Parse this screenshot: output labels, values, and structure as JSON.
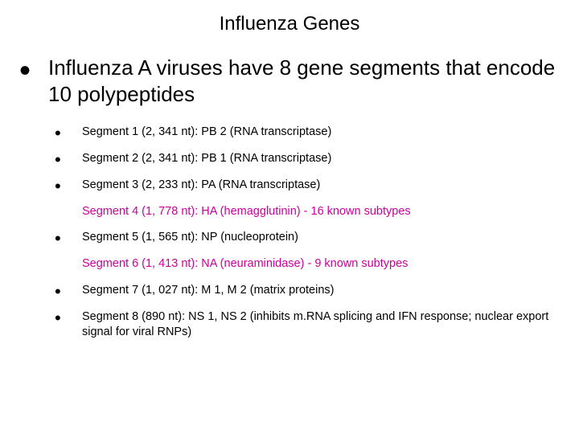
{
  "title": "Influenza Genes",
  "main": {
    "text": "Influenza A viruses have 8 gene segments that encode 10 polypeptides"
  },
  "subs": [
    {
      "bullet": true,
      "color": "#000000",
      "text": "Segment 1 (2, 341 nt): PB 2 (RNA transcriptase)"
    },
    {
      "bullet": true,
      "color": "#000000",
      "text": "Segment 2 (2, 341 nt): PB 1 (RNA transcriptase)"
    },
    {
      "bullet": true,
      "color": "#000000",
      "text": "Segment 3 (2, 233 nt): PA (RNA transcriptase)"
    },
    {
      "bullet": false,
      "color": "#cc0099",
      "text": "Segment 4 (1, 778 nt): HA (hemagglutinin) - 16 known subtypes"
    },
    {
      "bullet": true,
      "color": "#000000",
      "text": "Segment 5 (1, 565 nt): NP (nucleoprotein)"
    },
    {
      "bullet": false,
      "color": "#cc0099",
      "text": "Segment 6 (1, 413 nt): NA (neuraminidase) - 9 known subtypes"
    },
    {
      "bullet": true,
      "color": "#000000",
      "text": "Segment 7 (1, 027 nt): M 1, M 2 (matrix proteins)"
    },
    {
      "bullet": true,
      "color": "#000000",
      "text": "Segment 8 (890 nt): NS 1, NS 2 (inhibits m.RNA splicing and IFN response; nuclear export signal for viral RNPs)"
    }
  ]
}
